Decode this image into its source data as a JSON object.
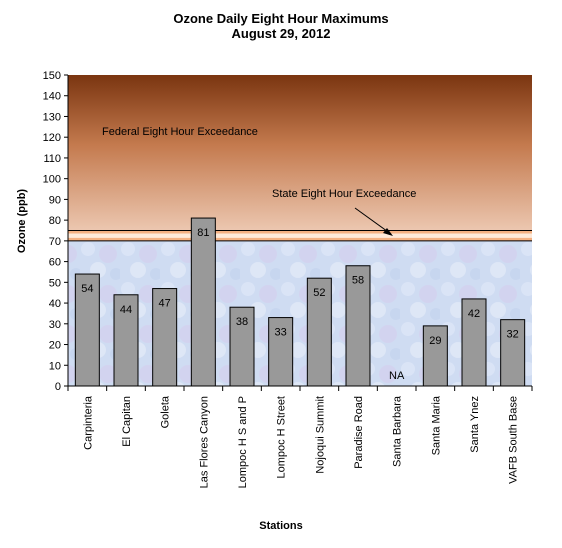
{
  "chart_data": {
    "type": "bar",
    "title": "Ozone Daily Eight Hour Maximums",
    "subtitle": "August  29, 2012",
    "xlabel": "Stations",
    "ylabel": "Ozone (ppb)",
    "ylim": [
      0,
      150
    ],
    "ytick_step": 10,
    "grid": false,
    "categories": [
      "Carpinteria",
      "El Capitan",
      "Goleta",
      "Las Flores Canyon",
      "Lompoc H S and P",
      "Lompoc H Street",
      "Nojoqui Summit",
      "Paradise Road",
      "Santa Barbara",
      "Santa Maria",
      "Santa Ynez",
      "VAFB South Base"
    ],
    "values": [
      54,
      44,
      47,
      81,
      38,
      33,
      52,
      58,
      null,
      29,
      42,
      32
    ],
    "value_labels": [
      "54",
      "44",
      "47",
      "81",
      "38",
      "33",
      "52",
      "58",
      "NA",
      "29",
      "42",
      "32"
    ],
    "bar_color": "#999999",
    "thresholds": {
      "state": 70,
      "federal": 75,
      "state_label": "State Eight Hour Exceedance",
      "federal_label": "Federal Eight Hour Exceedance"
    },
    "colors": {
      "below_state": "#c8d8f0",
      "band": "#fde9d9",
      "band_edge": "#f4b183",
      "top": "#7a3510",
      "bottom_of_exceedance": "#e8c0a8"
    }
  }
}
